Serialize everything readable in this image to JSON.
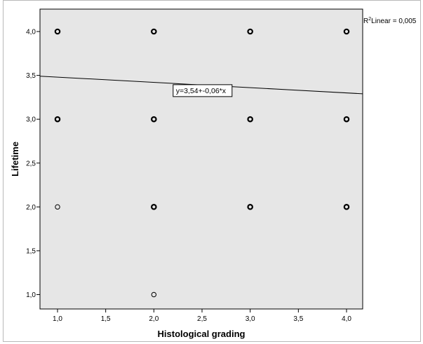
{
  "chart_data": {
    "type": "scatter",
    "xlabel": "Histological grading",
    "ylabel": "Lifetime",
    "xlim": [
      0.8,
      4.17
    ],
    "ylim": [
      0.8,
      4.3
    ],
    "x_ticks": [
      "1,0",
      "1,5",
      "2,0",
      "2,5",
      "3,0",
      "3,5",
      "4,0"
    ],
    "y_ticks": [
      "1,0",
      "1,5",
      "2,0",
      "2,5",
      "3,0",
      "3,5",
      "4,0"
    ],
    "x_tick_values": [
      1.0,
      1.5,
      2.0,
      2.5,
      3.0,
      3.5,
      4.0
    ],
    "y_tick_values": [
      1.0,
      1.5,
      2.0,
      2.5,
      3.0,
      3.5,
      4.0
    ],
    "points": [
      {
        "x": 1,
        "y": 4,
        "bold": true
      },
      {
        "x": 2,
        "y": 4,
        "bold": true
      },
      {
        "x": 3,
        "y": 4,
        "bold": true
      },
      {
        "x": 4,
        "y": 4,
        "bold": true
      },
      {
        "x": 1,
        "y": 3,
        "bold": true
      },
      {
        "x": 2,
        "y": 3,
        "bold": true
      },
      {
        "x": 3,
        "y": 3,
        "bold": true
      },
      {
        "x": 4,
        "y": 3,
        "bold": true
      },
      {
        "x": 1,
        "y": 2,
        "bold": false
      },
      {
        "x": 2,
        "y": 2,
        "bold": true
      },
      {
        "x": 3,
        "y": 2,
        "bold": true
      },
      {
        "x": 4,
        "y": 2,
        "bold": true
      },
      {
        "x": 2,
        "y": 1,
        "bold": false
      }
    ],
    "fit_line": {
      "intercept": 3.54,
      "slope": -0.06
    },
    "fit_label": "y=3,54+-0,06*x",
    "r2_label": "Linear = 0,005",
    "r2_prefix": "R",
    "r2_sup": "2",
    "grid": false,
    "colors": {
      "plot_background": "#e6e6e6",
      "marker": "#000000",
      "line": "#000000"
    }
  }
}
